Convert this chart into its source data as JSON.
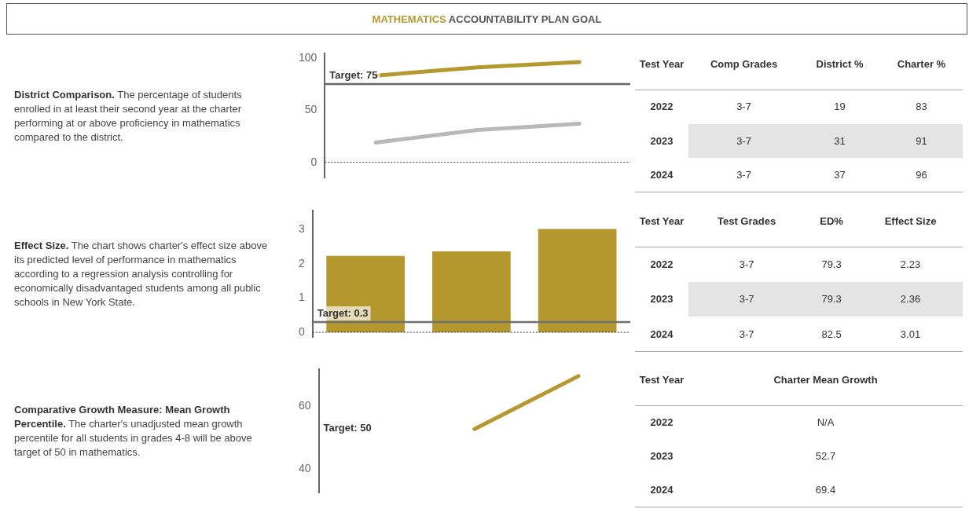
{
  "chart_data": [
    {
      "type": "other",
      "title": "MATHEMATICS ACCOUNTABILITY PLAN GOAL"
    },
    {
      "type": "other",
      "title": "District Comparison.",
      "subtitle": "The percentage of students enrolled in at least their second year at the charter performing at or above proficiency in mathematics compared to the district."
    },
    {
      "type": "line",
      "categories": [
        null,
        null,
        null
      ],
      "series": [
        {
          "color": "#b8b8b8",
          "values": [
            19,
            31,
            37
          ]
        },
        {
          "color": "#b5982e",
          "values": [
            83,
            91,
            96
          ]
        }
      ],
      "ylim": [
        -15,
        104
      ],
      "yticks": [
        0,
        50,
        100
      ],
      "tick_labels": "y",
      "ref_lines": [
        {
          "axis": "y",
          "value": 75,
          "label": "Target: 75",
          "color": "#666666"
        },
        {
          "axis": "y",
          "value": 0,
          "color": "#333333",
          "line_style": "dotted"
        }
      ]
    },
    {
      "type": "other",
      "categories": [
        "Test Year",
        "Comp Grades",
        "District %",
        "Charter %"
      ],
      "y_categories": [
        "2022",
        "2023",
        "2024"
      ],
      "cell_labels": [
        [
          "3-7",
          "19",
          "83"
        ],
        [
          "3-7",
          "31",
          "91"
        ],
        [
          "3-7",
          "37",
          "96"
        ]
      ]
    },
    {
      "type": "other",
      "title": "Effect Size.",
      "subtitle": "The chart shows charter's effect size above its predicted level of performance in mathematics according to a regression analysis controlling for economically disadvantaged students among all public schools in New York State."
    },
    {
      "type": "bar",
      "categories": [
        null,
        null,
        null
      ],
      "series": [
        {
          "color": "#b5972f",
          "values": [
            2.23,
            2.36,
            3.01
          ]
        }
      ],
      "ylim": [
        -0.15,
        3.54
      ],
      "yticks": [
        0,
        1,
        2,
        3
      ],
      "tick_labels": "y",
      "ref_lines": [
        {
          "axis": "y",
          "value": 0.3,
          "label": "Target: 0.3",
          "color": "#707070"
        },
        {
          "axis": "y",
          "value": 0,
          "color": "#333333",
          "line_style": "dotted"
        }
      ]
    },
    {
      "type": "other",
      "categories": [
        "Test Year",
        "Test Grades",
        "ED%",
        "Effect Size"
      ],
      "y_categories": [
        "2022",
        "2023",
        "2024"
      ],
      "cell_labels": [
        [
          "3-7",
          "79.3",
          "2.23"
        ],
        [
          "3-7",
          "79.3",
          "2.36"
        ],
        [
          "3-7",
          "82.5",
          "3.01"
        ]
      ]
    },
    {
      "type": "other",
      "title": "Comparative Growth Measure: Mean Growth Percentile.",
      "subtitle": "The charter's unadjusted mean growth percentile for all students in grades 4-8 will be above target of 50 in mathematics."
    },
    {
      "type": "line",
      "categories": [
        null,
        null,
        null
      ],
      "series": [
        {
          "color": "#b5982e",
          "values": [
            null,
            52.7,
            69.4
          ]
        }
      ],
      "ylim": [
        32.5,
        71.5
      ],
      "yticks": [
        40,
        60
      ],
      "tick_labels": "y",
      "annotations": [
        "Target: 50"
      ]
    },
    {
      "type": "other",
      "categories": [
        "Test Year",
        "Charter Mean Growth"
      ],
      "y_categories": [
        "2022",
        "2023",
        "2024"
      ],
      "cell_labels": [
        [
          "N/A"
        ],
        [
          "52.7"
        ],
        [
          "69.4"
        ]
      ]
    }
  ]
}
